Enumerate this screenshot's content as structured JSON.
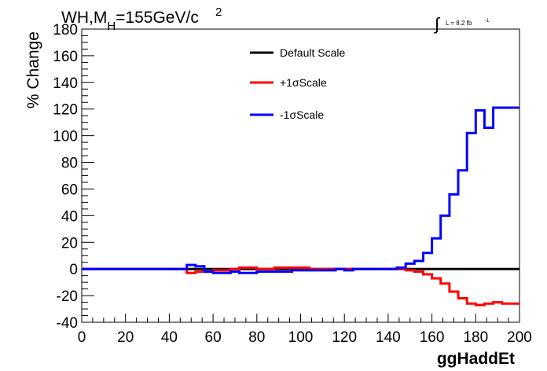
{
  "header": {
    "title_main": "WH,M",
    "title_sub": "H",
    "title_rest": "=155GeV/c",
    "title_sup": "2",
    "lumi_symbol": "∫",
    "lumi_text": "L = 8.2 fb",
    "lumi_sup": "-1"
  },
  "chart_data": {
    "type": "line",
    "xlabel": "ggHaddEt",
    "ylabel": "% Change",
    "xlim": [
      0,
      200
    ],
    "ylim": [
      -40,
      180
    ],
    "xticks": [
      0,
      20,
      40,
      60,
      80,
      100,
      120,
      140,
      160,
      180,
      200
    ],
    "yticks": [
      -40,
      -20,
      0,
      20,
      40,
      60,
      80,
      100,
      120,
      140,
      160,
      180
    ],
    "bin_width": 4,
    "legend_position": "top-center",
    "series": [
      {
        "name": "Default Scale",
        "color": "#000000",
        "values": [
          0,
          0,
          0,
          0,
          0,
          0,
          0,
          0,
          0,
          0,
          0,
          0,
          0,
          0,
          0,
          0,
          0,
          0,
          0,
          0,
          0,
          0,
          0,
          0,
          0,
          0,
          0,
          0,
          0,
          0,
          0,
          0,
          0,
          0,
          0,
          0,
          0,
          0,
          0,
          0,
          0,
          0,
          0,
          0,
          0,
          0,
          0,
          0,
          0,
          0
        ]
      },
      {
        "name": "+1σScale",
        "color": "#ff0000",
        "values": [
          0,
          0,
          0,
          0,
          0,
          0,
          0,
          0,
          0,
          0,
          0,
          0,
          -3,
          -2,
          -2,
          -1,
          -1,
          0,
          1,
          1,
          0,
          0,
          1,
          1,
          1,
          1,
          0,
          0,
          0,
          0,
          0,
          0,
          0,
          0,
          0,
          0,
          0,
          -1,
          -2,
          -4,
          -7,
          -11,
          -17,
          -22,
          -26,
          -27,
          -26,
          -25,
          -26,
          -26
        ]
      },
      {
        "name": "-1σScale",
        "color": "#0000ff",
        "values": [
          0,
          0,
          0,
          0,
          0,
          0,
          0,
          0,
          0,
          0,
          0,
          0,
          3,
          2,
          -2,
          -3,
          -3,
          -2,
          -3,
          -3,
          -2,
          -2,
          -2,
          -2,
          -1,
          -1,
          -1,
          -1,
          -1,
          0,
          -1,
          0,
          0,
          0,
          0,
          0,
          1,
          4,
          6,
          12,
          23,
          40,
          56,
          74,
          102,
          119,
          106,
          121,
          121,
          121
        ]
      }
    ]
  }
}
